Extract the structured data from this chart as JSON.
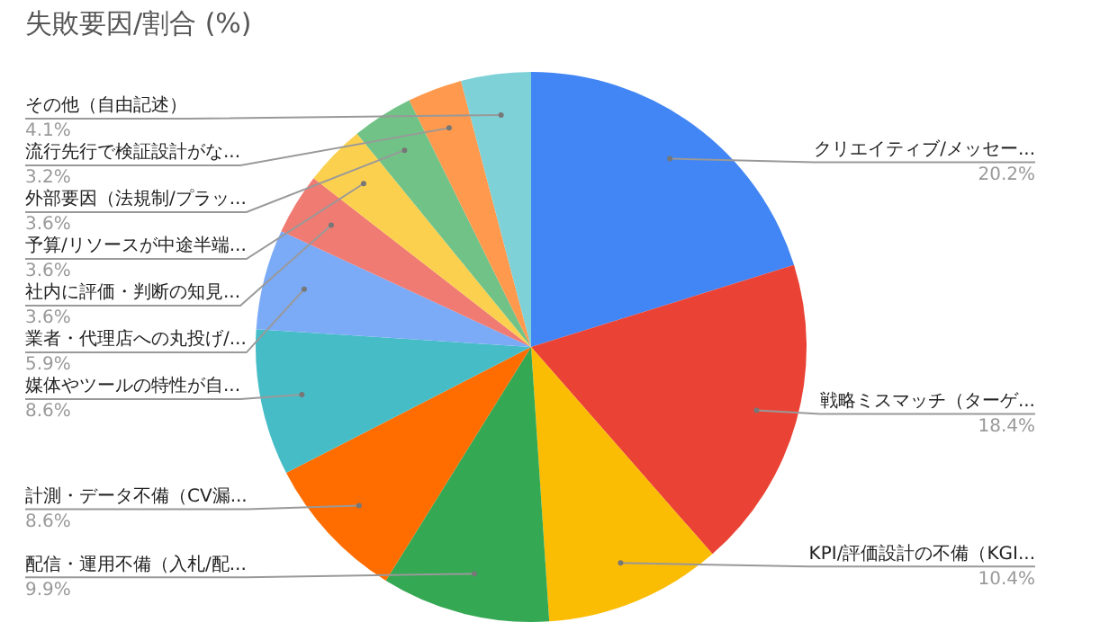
{
  "chart_data": {
    "type": "pie",
    "title": "失敗要因/割合 (%)",
    "categories": [
      "クリエイティブ/メッセー...",
      "戦略ミスマッチ（ターゲ...",
      "KPI/評価設計の不備（KGI...",
      "配信・運用不備（入札/配...",
      "計測・データ不備（CV漏...",
      "媒体やツールの特性が自...",
      "業者・代理店への丸投げ/...",
      "社内に評価・判断の知見...",
      "予算/リソースが中途半端...",
      "外部要因（法規制/プラッ...",
      "流行先行で検証設計がな...",
      "その他（自由記述）"
    ],
    "values": [
      20.2,
      18.4,
      10.4,
      9.9,
      8.6,
      8.6,
      5.9,
      3.6,
      3.6,
      3.6,
      3.2,
      4.1
    ],
    "value_labels": [
      "20.2%",
      "18.4%",
      "10.4%",
      "9.9%",
      "8.6%",
      "8.6%",
      "5.9%",
      "3.6%",
      "3.6%",
      "3.6%",
      "3.2%",
      "4.1%"
    ],
    "colors": [
      "#4285f4",
      "#ea4335",
      "#fbbc04",
      "#34a853",
      "#ff6d01",
      "#46bdc6",
      "#7baaf7",
      "#f07b72",
      "#fcd04f",
      "#71c287",
      "#ff994d",
      "#7ed1d7"
    ],
    "legend": false
  }
}
